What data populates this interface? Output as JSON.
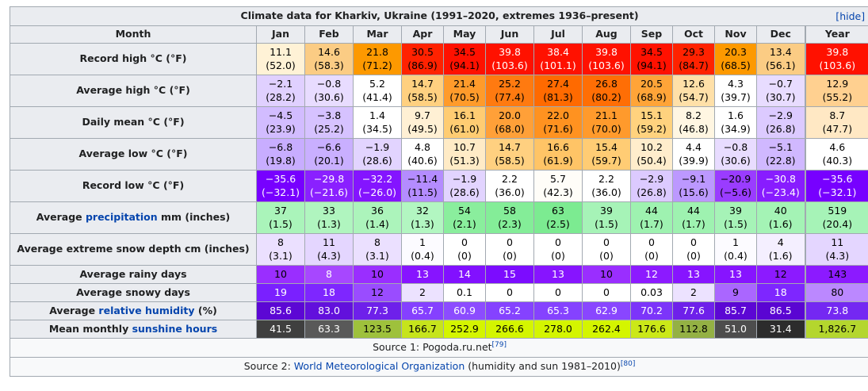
{
  "table": {
    "title": "Climate data for Kharkiv, Ukraine (1991–2020, extremes 1936–present)",
    "hide_label": "hide",
    "header_label": "Month",
    "months": [
      "Jan",
      "Feb",
      "Mar",
      "Apr",
      "May",
      "Jun",
      "Jul",
      "Aug",
      "Sep",
      "Oct",
      "Nov",
      "Dec",
      "Year"
    ],
    "rows": [
      {
        "label": "Record high °C (°F)",
        "cells": [
          {
            "v": "11.1",
            "s": "(52.0)",
            "bg": "#fff2d6",
            "fg": "#000000"
          },
          {
            "v": "14.6",
            "s": "(58.3)",
            "bg": "#fbcc84",
            "fg": "#000000"
          },
          {
            "v": "21.8",
            "s": "(71.2)",
            "bg": "#fd9900",
            "fg": "#000000"
          },
          {
            "v": "30.5",
            "s": "(86.9)",
            "bg": "#ff2200",
            "fg": "#000000"
          },
          {
            "v": "34.5",
            "s": "(94.1)",
            "bg": "#ff1100",
            "fg": "#000000"
          },
          {
            "v": "39.8",
            "s": "(103.6)",
            "bg": "#ff1100",
            "fg": "#ffffff"
          },
          {
            "v": "38.4",
            "s": "(101.1)",
            "bg": "#ff1100",
            "fg": "#ffffff"
          },
          {
            "v": "39.8",
            "s": "(103.6)",
            "bg": "#ff1100",
            "fg": "#ffffff"
          },
          {
            "v": "34.5",
            "s": "(94.1)",
            "bg": "#ff1100",
            "fg": "#000000"
          },
          {
            "v": "29.3",
            "s": "(84.7)",
            "bg": "#ff2200",
            "fg": "#000000"
          },
          {
            "v": "20.3",
            "s": "(68.5)",
            "bg": "#fd9900",
            "fg": "#000000"
          },
          {
            "v": "13.4",
            "s": "(56.1)",
            "bg": "#fbcc84",
            "fg": "#000000"
          },
          {
            "v": "39.8",
            "s": "(103.6)",
            "bg": "#ff1100",
            "fg": "#ffffff"
          }
        ]
      },
      {
        "label": "Average high °C (°F)",
        "cells": [
          {
            "v": "−2.1",
            "s": "(28.2)",
            "bg": "#e0d0ff",
            "fg": "#000000"
          },
          {
            "v": "−0.8",
            "s": "(30.6)",
            "bg": "#e8dcff",
            "fg": "#000000"
          },
          {
            "v": "5.2",
            "s": "(41.4)",
            "bg": "#ffffff",
            "fg": "#000000"
          },
          {
            "v": "14.7",
            "s": "(58.5)",
            "bg": "#ffd080",
            "fg": "#000000"
          },
          {
            "v": "21.4",
            "s": "(70.5)",
            "bg": "#ff9b2b",
            "fg": "#000000"
          },
          {
            "v": "25.2",
            "s": "(77.4)",
            "bg": "#ff7a10",
            "fg": "#000000"
          },
          {
            "v": "27.4",
            "s": "(81.3)",
            "bg": "#ff6a00",
            "fg": "#000000"
          },
          {
            "v": "26.8",
            "s": "(80.2)",
            "bg": "#ff6e05",
            "fg": "#000000"
          },
          {
            "v": "20.5",
            "s": "(68.9)",
            "bg": "#ffa438",
            "fg": "#000000"
          },
          {
            "v": "12.6",
            "s": "(54.7)",
            "bg": "#ffe0a8",
            "fg": "#000000"
          },
          {
            "v": "4.3",
            "s": "(39.7)",
            "bg": "#ffffff",
            "fg": "#000000"
          },
          {
            "v": "−0.7",
            "s": "(30.7)",
            "bg": "#e8dcff",
            "fg": "#000000"
          },
          {
            "v": "12.9",
            "s": "(55.2)",
            "bg": "#ffd090",
            "fg": "#000000"
          }
        ]
      },
      {
        "label": "Daily mean °C (°F)",
        "cells": [
          {
            "v": "−4.5",
            "s": "(23.9)",
            "bg": "#d2bcff",
            "fg": "#000000"
          },
          {
            "v": "−3.8",
            "s": "(25.2)",
            "bg": "#d6c2ff",
            "fg": "#000000"
          },
          {
            "v": "1.4",
            "s": "(34.5)",
            "bg": "#ffffff",
            "fg": "#000000"
          },
          {
            "v": "9.7",
            "s": "(49.5)",
            "bg": "#fff0d4",
            "fg": "#000000"
          },
          {
            "v": "16.1",
            "s": "(61.0)",
            "bg": "#ffcc72",
            "fg": "#000000"
          },
          {
            "v": "20.0",
            "s": "(68.0)",
            "bg": "#ffa038",
            "fg": "#000000"
          },
          {
            "v": "22.0",
            "s": "(71.6)",
            "bg": "#ff9220",
            "fg": "#000000"
          },
          {
            "v": "21.1",
            "s": "(70.0)",
            "bg": "#ff9a2c",
            "fg": "#000000"
          },
          {
            "v": "15.1",
            "s": "(59.2)",
            "bg": "#ffd27e",
            "fg": "#000000"
          },
          {
            "v": "8.2",
            "s": "(46.8)",
            "bg": "#fff6e2",
            "fg": "#000000"
          },
          {
            "v": "1.6",
            "s": "(34.9)",
            "bg": "#ffffff",
            "fg": "#000000"
          },
          {
            "v": "−2.9",
            "s": "(26.8)",
            "bg": "#dccaff",
            "fg": "#000000"
          },
          {
            "v": "8.7",
            "s": "(47.7)",
            "bg": "#ffe8c4",
            "fg": "#000000"
          }
        ]
      },
      {
        "label": "Average low °C (°F)",
        "cells": [
          {
            "v": "−6.8",
            "s": "(19.8)",
            "bg": "#c8adff",
            "fg": "#000000"
          },
          {
            "v": "−6.6",
            "s": "(20.1)",
            "bg": "#c9afff",
            "fg": "#000000"
          },
          {
            "v": "−1.9",
            "s": "(28.6)",
            "bg": "#e2d4ff",
            "fg": "#000000"
          },
          {
            "v": "4.8",
            "s": "(40.6)",
            "bg": "#ffffff",
            "fg": "#000000"
          },
          {
            "v": "10.7",
            "s": "(51.3)",
            "bg": "#ffebc6",
            "fg": "#000000"
          },
          {
            "v": "14.7",
            "s": "(58.5)",
            "bg": "#ffd080",
            "fg": "#000000"
          },
          {
            "v": "16.6",
            "s": "(61.9)",
            "bg": "#ffc466",
            "fg": "#000000"
          },
          {
            "v": "15.4",
            "s": "(59.7)",
            "bg": "#ffcc74",
            "fg": "#000000"
          },
          {
            "v": "10.2",
            "s": "(50.4)",
            "bg": "#ffedcc",
            "fg": "#000000"
          },
          {
            "v": "4.4",
            "s": "(39.9)",
            "bg": "#ffffff",
            "fg": "#000000"
          },
          {
            "v": "−0.8",
            "s": "(30.6)",
            "bg": "#e8dcff",
            "fg": "#000000"
          },
          {
            "v": "−5.1",
            "s": "(22.8)",
            "bg": "#d0b8ff",
            "fg": "#000000"
          },
          {
            "v": "4.6",
            "s": "(40.3)",
            "bg": "#ffffff",
            "fg": "#000000"
          }
        ]
      },
      {
        "label": "Record low °C (°F)",
        "cells": [
          {
            "v": "−35.6",
            "s": "(−32.1)",
            "bg": "#7700ff",
            "fg": "#ffffff"
          },
          {
            "v": "−29.8",
            "s": "(−21.6)",
            "bg": "#8a20ff",
            "fg": "#ffffff"
          },
          {
            "v": "−32.2",
            "s": "(−26.0)",
            "bg": "#8414ff",
            "fg": "#ffffff"
          },
          {
            "v": "−11.4",
            "s": "(11.5)",
            "bg": "#b48cff",
            "fg": "#000000"
          },
          {
            "v": "−1.9",
            "s": "(28.6)",
            "bg": "#e2d4ff",
            "fg": "#000000"
          },
          {
            "v": "2.2",
            "s": "(36.0)",
            "bg": "#ffffff",
            "fg": "#000000"
          },
          {
            "v": "5.7",
            "s": "(42.3)",
            "bg": "#fffdf8",
            "fg": "#000000"
          },
          {
            "v": "2.2",
            "s": "(36.0)",
            "bg": "#ffffff",
            "fg": "#000000"
          },
          {
            "v": "−2.9",
            "s": "(26.8)",
            "bg": "#dccaff",
            "fg": "#000000"
          },
          {
            "v": "−9.1",
            "s": "(15.6)",
            "bg": "#bc98ff",
            "fg": "#000000"
          },
          {
            "v": "−20.9",
            "s": "(−5.6)",
            "bg": "#9a3cff",
            "fg": "#000000"
          },
          {
            "v": "−30.8",
            "s": "(−23.4)",
            "bg": "#881cff",
            "fg": "#ffffff"
          },
          {
            "v": "−35.6",
            "s": "(−32.1)",
            "bg": "#7700ff",
            "fg": "#ffffff"
          }
        ]
      },
      {
        "label_pre": "Average ",
        "label_link": "precipitation",
        "label_post": " mm (inches)",
        "cells": [
          {
            "v": "37",
            "s": "(1.5)",
            "bg": "#aaf4ba",
            "fg": "#000000"
          },
          {
            "v": "33",
            "s": "(1.3)",
            "bg": "#b0f5bf",
            "fg": "#000000"
          },
          {
            "v": "36",
            "s": "(1.4)",
            "bg": "#acf4bb",
            "fg": "#000000"
          },
          {
            "v": "32",
            "s": "(1.3)",
            "bg": "#b2f6c1",
            "fg": "#000000"
          },
          {
            "v": "54",
            "s": "(2.1)",
            "bg": "#8aee9d",
            "fg": "#000000"
          },
          {
            "v": "58",
            "s": "(2.3)",
            "bg": "#84ed98",
            "fg": "#000000"
          },
          {
            "v": "63",
            "s": "(2.5)",
            "bg": "#7ceb91",
            "fg": "#000000"
          },
          {
            "v": "39",
            "s": "(1.5)",
            "bg": "#a6f3b7",
            "fg": "#000000"
          },
          {
            "v": "44",
            "s": "(1.7)",
            "bg": "#9ef2b0",
            "fg": "#000000"
          },
          {
            "v": "44",
            "s": "(1.7)",
            "bg": "#9ef2b0",
            "fg": "#000000"
          },
          {
            "v": "39",
            "s": "(1.5)",
            "bg": "#a6f3b7",
            "fg": "#000000"
          },
          {
            "v": "40",
            "s": "(1.6)",
            "bg": "#a4f3b5",
            "fg": "#000000"
          },
          {
            "v": "519",
            "s": "(20.4)",
            "bg": "#a6f3b7",
            "fg": "#000000"
          }
        ]
      },
      {
        "label": "Average extreme snow depth cm (inches)",
        "cells": [
          {
            "v": "8",
            "s": "(3.1)",
            "bg": "#ebe0ff",
            "fg": "#000000"
          },
          {
            "v": "11",
            "s": "(4.3)",
            "bg": "#e4d6ff",
            "fg": "#000000"
          },
          {
            "v": "8",
            "s": "(3.1)",
            "bg": "#ebe0ff",
            "fg": "#000000"
          },
          {
            "v": "1",
            "s": "(0.4)",
            "bg": "#fcfbff",
            "fg": "#000000"
          },
          {
            "v": "0",
            "s": "(0)",
            "bg": "#ffffff",
            "fg": "#000000"
          },
          {
            "v": "0",
            "s": "(0)",
            "bg": "#ffffff",
            "fg": "#000000"
          },
          {
            "v": "0",
            "s": "(0)",
            "bg": "#ffffff",
            "fg": "#000000"
          },
          {
            "v": "0",
            "s": "(0)",
            "bg": "#ffffff",
            "fg": "#000000"
          },
          {
            "v": "0",
            "s": "(0)",
            "bg": "#ffffff",
            "fg": "#000000"
          },
          {
            "v": "0",
            "s": "(0)",
            "bg": "#ffffff",
            "fg": "#000000"
          },
          {
            "v": "1",
            "s": "(0.4)",
            "bg": "#fcfbff",
            "fg": "#000000"
          },
          {
            "v": "4",
            "s": "(1.6)",
            "bg": "#f4efff",
            "fg": "#000000"
          },
          {
            "v": "11",
            "s": "(4.3)",
            "bg": "#e4d6ff",
            "fg": "#000000"
          }
        ]
      },
      {
        "label": "Average rainy days",
        "single": true,
        "cells": [
          {
            "v": "10",
            "bg": "#9a2eff",
            "fg": "#000000"
          },
          {
            "v": "8",
            "bg": "#a747ff",
            "fg": "#ffffff"
          },
          {
            "v": "10",
            "bg": "#9a2eff",
            "fg": "#000000"
          },
          {
            "v": "13",
            "bg": "#8714ff",
            "fg": "#ffffff"
          },
          {
            "v": "14",
            "bg": "#8210ff",
            "fg": "#ffffff"
          },
          {
            "v": "15",
            "bg": "#7c0cff",
            "fg": "#ffffff"
          },
          {
            "v": "13",
            "bg": "#8714ff",
            "fg": "#ffffff"
          },
          {
            "v": "10",
            "bg": "#9a2eff",
            "fg": "#000000"
          },
          {
            "v": "12",
            "bg": "#8c1aff",
            "fg": "#ffffff"
          },
          {
            "v": "13",
            "bg": "#8714ff",
            "fg": "#ffffff"
          },
          {
            "v": "13",
            "bg": "#8714ff",
            "fg": "#ffffff"
          },
          {
            "v": "12",
            "bg": "#8c1aff",
            "fg": "#000000"
          },
          {
            "v": "143",
            "bg": "#8c1aff",
            "fg": "#000000"
          }
        ]
      },
      {
        "label": "Average snowy days",
        "single": true,
        "cells": [
          {
            "v": "19",
            "bg": "#7a20ff",
            "fg": "#ffffff"
          },
          {
            "v": "18",
            "bg": "#7e26ff",
            "fg": "#ffffff"
          },
          {
            "v": "12",
            "bg": "#9a4cff",
            "fg": "#000000"
          },
          {
            "v": "2",
            "bg": "#ece2ff",
            "fg": "#000000"
          },
          {
            "v": "0.1",
            "bg": "#ffffff",
            "fg": "#000000"
          },
          {
            "v": "0",
            "bg": "#ffffff",
            "fg": "#000000"
          },
          {
            "v": "0",
            "bg": "#ffffff",
            "fg": "#000000"
          },
          {
            "v": "0",
            "bg": "#ffffff",
            "fg": "#000000"
          },
          {
            "v": "0.03",
            "bg": "#ffffff",
            "fg": "#000000"
          },
          {
            "v": "2",
            "bg": "#ece2ff",
            "fg": "#000000"
          },
          {
            "v": "9",
            "bg": "#aa66ff",
            "fg": "#000000"
          },
          {
            "v": "18",
            "bg": "#7e26ff",
            "fg": "#ffffff"
          },
          {
            "v": "80",
            "bg": "#bb88ff",
            "fg": "#000000"
          }
        ]
      },
      {
        "label_pre": "Average ",
        "label_link": "relative humidity",
        "label_post": " (%)",
        "single": true,
        "cells": [
          {
            "v": "85.6",
            "bg": "#5c07d4",
            "fg": "#ffffff"
          },
          {
            "v": "83.0",
            "bg": "#6210dc",
            "fg": "#ffffff"
          },
          {
            "v": "77.3",
            "bg": "#6e20ea",
            "fg": "#ffffff"
          },
          {
            "v": "65.7",
            "bg": "#8540ff",
            "fg": "#ffffff"
          },
          {
            "v": "60.9",
            "bg": "#8c4cff",
            "fg": "#ffffff"
          },
          {
            "v": "65.2",
            "bg": "#8542ff",
            "fg": "#ffffff"
          },
          {
            "v": "65.3",
            "bg": "#8542ff",
            "fg": "#ffffff"
          },
          {
            "v": "62.9",
            "bg": "#8946ff",
            "fg": "#ffffff"
          },
          {
            "v": "70.2",
            "bg": "#7c34fa",
            "fg": "#ffffff"
          },
          {
            "v": "77.6",
            "bg": "#6e20ea",
            "fg": "#ffffff"
          },
          {
            "v": "85.7",
            "bg": "#5c07d4",
            "fg": "#ffffff"
          },
          {
            "v": "86.5",
            "bg": "#5a05d2",
            "fg": "#ffffff"
          },
          {
            "v": "73.8",
            "bg": "#7428f2",
            "fg": "#ffffff"
          }
        ]
      },
      {
        "label_pre": "Mean monthly ",
        "label_link": "sunshine hours",
        "label_post": "",
        "single": true,
        "cells": [
          {
            "v": "41.5",
            "bg": "#3f3f3f",
            "fg": "#ffffff"
          },
          {
            "v": "63.3",
            "bg": "#595959",
            "fg": "#ffffff"
          },
          {
            "v": "123.5",
            "bg": "#9ec13c",
            "fg": "#000000"
          },
          {
            "v": "166.7",
            "bg": "#c6e41c",
            "fg": "#000000"
          },
          {
            "v": "252.9",
            "bg": "#d4f500",
            "fg": "#000000"
          },
          {
            "v": "266.6",
            "bg": "#d4f500",
            "fg": "#000000"
          },
          {
            "v": "278.0",
            "bg": "#d4f500",
            "fg": "#000000"
          },
          {
            "v": "262.4",
            "bg": "#d4f500",
            "fg": "#000000"
          },
          {
            "v": "176.6",
            "bg": "#cbe818",
            "fg": "#000000"
          },
          {
            "v": "112.8",
            "bg": "#94b144",
            "fg": "#000000"
          },
          {
            "v": "51.0",
            "bg": "#4d4d4d",
            "fg": "#ffffff"
          },
          {
            "v": "31.4",
            "bg": "#2c2c2c",
            "fg": "#ffffff"
          },
          {
            "v": "1,826.7",
            "bg": "#b4d62e",
            "fg": "#000000"
          }
        ]
      }
    ],
    "source1": {
      "text": "Source 1: Pogoda.ru.net",
      "ref": "[79]"
    },
    "source2": {
      "pre": "Source 2: ",
      "link": "World Meteorological Organization",
      "post": " (humidity and sun 1981–2010)",
      "ref": "[80]"
    }
  }
}
